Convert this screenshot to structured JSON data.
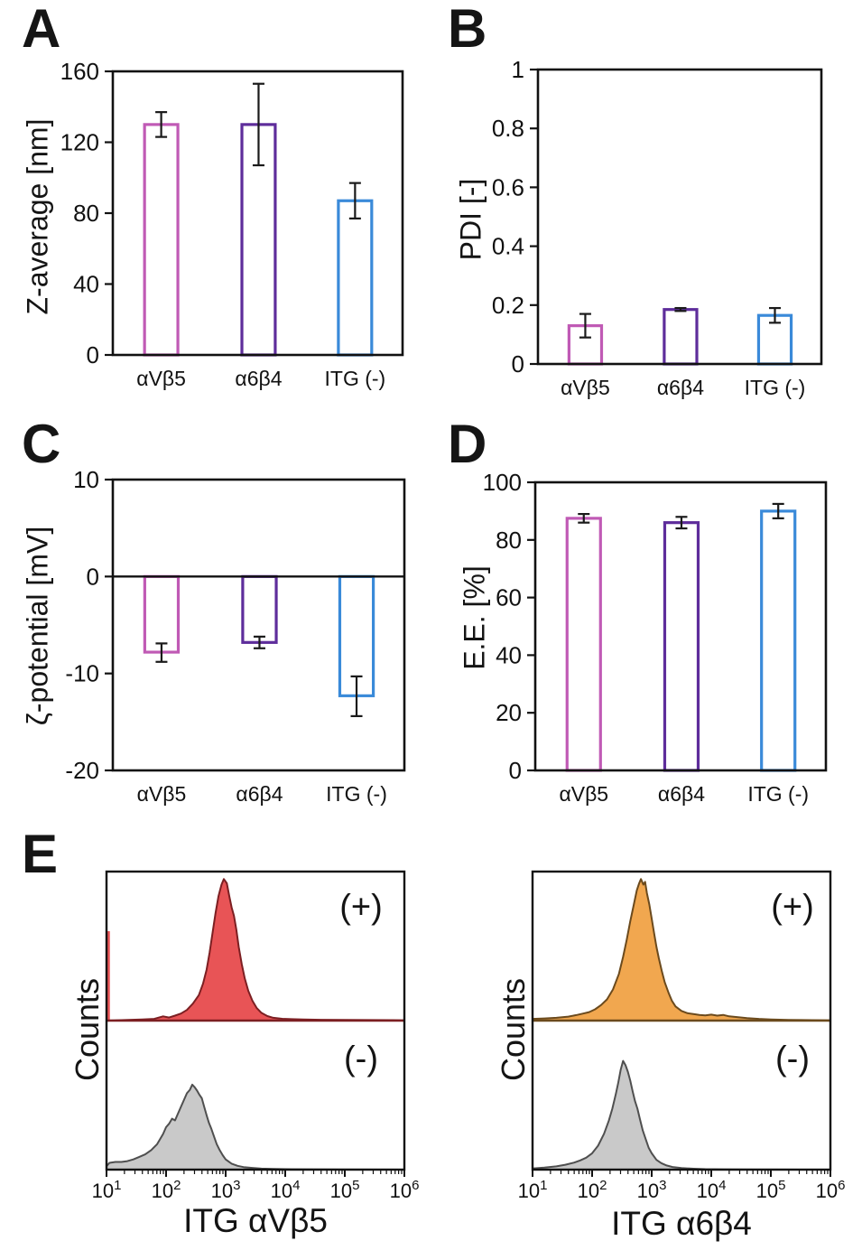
{
  "chart_data": [
    {
      "panel": "A",
      "type": "bar",
      "title": "",
      "ylabel": "Z-average [nm]",
      "xlabel": "",
      "categories": [
        "αVβ5",
        "α6β4",
        "ITG (-)"
      ],
      "values": [
        130,
        130,
        87
      ],
      "error_low": [
        123,
        107,
        77
      ],
      "error_high": [
        137,
        153,
        97
      ],
      "ylim": [
        0,
        160
      ],
      "yticks": [
        160,
        120,
        80,
        40,
        0
      ],
      "bar_colors": [
        "#c05ab5",
        "#5e2d9b",
        "#3a8ad9"
      ],
      "grid": false,
      "legend": "none"
    },
    {
      "panel": "B",
      "type": "bar",
      "title": "",
      "ylabel": "PDI [-]",
      "xlabel": "",
      "categories": [
        "αVβ5",
        "α6β4",
        "ITG (-)"
      ],
      "values": [
        0.13,
        0.185,
        0.165
      ],
      "error_low": [
        0.09,
        0.18,
        0.14
      ],
      "error_high": [
        0.17,
        0.19,
        0.19
      ],
      "ylim": [
        0,
        1
      ],
      "yticks": [
        1,
        0.8,
        0.6,
        0.4,
        0.2,
        0
      ],
      "bar_colors": [
        "#c05ab5",
        "#5e2d9b",
        "#3a8ad9"
      ],
      "grid": false,
      "legend": "none"
    },
    {
      "panel": "C",
      "type": "bar",
      "title": "",
      "ylabel": "ζ-potential [mV]",
      "xlabel": "",
      "categories": [
        "αVβ5",
        "α6β4",
        "ITG (-)"
      ],
      "values": [
        -7.8,
        -6.8,
        -12.3
      ],
      "error_low": [
        -8.8,
        -7.4,
        -14.4
      ],
      "error_high": [
        -6.9,
        -6.2,
        -10.3
      ],
      "ylim": [
        -20,
        10
      ],
      "yticks": [
        10,
        0,
        -10,
        -20
      ],
      "zero_line": true,
      "bar_colors": [
        "#c05ab5",
        "#5e2d9b",
        "#3a8ad9"
      ],
      "grid": false,
      "legend": "none"
    },
    {
      "panel": "D",
      "type": "bar",
      "title": "",
      "ylabel": "E.E. [%]",
      "xlabel": "",
      "categories": [
        "αVβ5",
        "α6β4",
        "ITG (-)"
      ],
      "values": [
        87.5,
        86,
        90
      ],
      "error_low": [
        86,
        84,
        87.5
      ],
      "error_high": [
        89,
        88,
        92.5
      ],
      "ylim": [
        0,
        100
      ],
      "yticks": [
        100,
        80,
        60,
        40,
        20,
        0
      ],
      "bar_colors": [
        "#c05ab5",
        "#5e2d9b",
        "#3a8ad9"
      ],
      "grid": false,
      "legend": "none"
    },
    {
      "panel": "E",
      "type": "flow-cytometry-histogram",
      "plots": [
        {
          "xlabel": "ITG αVβ5",
          "ylabel": "Counts",
          "xscale": "log",
          "x_tick_exponents": [
            1,
            2,
            3,
            4,
            5,
            6
          ],
          "series": [
            {
              "name": "(+)",
              "fill": "#e85456",
              "stroke": "#7c1f22",
              "height_frac": 0.95,
              "left_edge_spike": 0.6,
              "peak_x": 950,
              "points": [
                [
                  1.0,
                  0.0
                ],
                [
                  1.3,
                  0.004
                ],
                [
                  1.6,
                  0.008
                ],
                [
                  1.8,
                  0.012
                ],
                [
                  1.95,
                  0.03
                ],
                [
                  2.05,
                  0.022
                ],
                [
                  2.15,
                  0.035
                ],
                [
                  2.25,
                  0.05
                ],
                [
                  2.35,
                  0.075
                ],
                [
                  2.45,
                  0.12
                ],
                [
                  2.55,
                  0.18
                ],
                [
                  2.62,
                  0.26
                ],
                [
                  2.68,
                  0.36
                ],
                [
                  2.73,
                  0.48
                ],
                [
                  2.78,
                  0.62
                ],
                [
                  2.83,
                  0.76
                ],
                [
                  2.88,
                  0.88
                ],
                [
                  2.93,
                  0.96
                ],
                [
                  2.97,
                  1.0
                ],
                [
                  3.02,
                  0.97
                ],
                [
                  3.06,
                  0.88
                ],
                [
                  3.1,
                  0.8
                ],
                [
                  3.14,
                  0.74
                ],
                [
                  3.18,
                  0.64
                ],
                [
                  3.22,
                  0.52
                ],
                [
                  3.27,
                  0.4
                ],
                [
                  3.32,
                  0.3
                ],
                [
                  3.38,
                  0.21
                ],
                [
                  3.45,
                  0.14
                ],
                [
                  3.52,
                  0.09
                ],
                [
                  3.6,
                  0.055
                ],
                [
                  3.7,
                  0.032
                ],
                [
                  3.8,
                  0.02
                ],
                [
                  3.95,
                  0.013
                ],
                [
                  4.1,
                  0.01
                ],
                [
                  4.3,
                  0.008
                ],
                [
                  4.6,
                  0.006
                ],
                [
                  5.0,
                  0.005
                ],
                [
                  5.4,
                  0.004
                ],
                [
                  5.8,
                  0.003
                ],
                [
                  6.0,
                  0.002
                ]
              ]
            },
            {
              "name": "(-)",
              "fill": "#c9c9c9",
              "stroke": "#4f4f4f",
              "height_frac": 0.57,
              "peak_x": 280,
              "points": [
                [
                  1.0,
                  0.04
                ],
                [
                  1.05,
                  0.08
                ],
                [
                  1.15,
                  0.09
                ],
                [
                  1.25,
                  0.09
                ],
                [
                  1.35,
                  0.1
                ],
                [
                  1.45,
                  0.12
                ],
                [
                  1.55,
                  0.15
                ],
                [
                  1.65,
                  0.18
                ],
                [
                  1.75,
                  0.23
                ],
                [
                  1.85,
                  0.3
                ],
                [
                  1.95,
                  0.42
                ],
                [
                  2.0,
                  0.5
                ],
                [
                  2.05,
                  0.54
                ],
                [
                  2.1,
                  0.6
                ],
                [
                  2.15,
                  0.58
                ],
                [
                  2.2,
                  0.66
                ],
                [
                  2.25,
                  0.74
                ],
                [
                  2.3,
                  0.82
                ],
                [
                  2.35,
                  0.9
                ],
                [
                  2.4,
                  0.94
                ],
                [
                  2.44,
                  1.0
                ],
                [
                  2.48,
                  0.97
                ],
                [
                  2.52,
                  0.93
                ],
                [
                  2.56,
                  0.88
                ],
                [
                  2.6,
                  0.84
                ],
                [
                  2.64,
                  0.74
                ],
                [
                  2.68,
                  0.64
                ],
                [
                  2.72,
                  0.55
                ],
                [
                  2.76,
                  0.48
                ],
                [
                  2.8,
                  0.4
                ],
                [
                  2.85,
                  0.3
                ],
                [
                  2.9,
                  0.23
                ],
                [
                  2.95,
                  0.17
                ],
                [
                  3.0,
                  0.12
                ],
                [
                  3.1,
                  0.07
                ],
                [
                  3.2,
                  0.045
                ],
                [
                  3.3,
                  0.03
                ],
                [
                  3.45,
                  0.02
                ],
                [
                  3.6,
                  0.012
                ],
                [
                  3.8,
                  0.007
                ],
                [
                  4.1,
                  0.004
                ],
                [
                  4.5,
                  0.002
                ],
                [
                  5.0,
                  0.001
                ],
                [
                  6.0,
                  0.0
                ]
              ]
            }
          ]
        },
        {
          "xlabel": "ITG α6β4",
          "ylabel": "Counts",
          "xscale": "log",
          "x_tick_exponents": [
            1,
            2,
            3,
            4,
            5,
            6
          ],
          "series": [
            {
              "name": "(+)",
              "fill": "#f1a74f",
              "stroke": "#6b4a1d",
              "height_frac": 0.95,
              "peak_x": 660,
              "points": [
                [
                  1.0,
                  0.012
                ],
                [
                  1.2,
                  0.015
                ],
                [
                  1.4,
                  0.02
                ],
                [
                  1.6,
                  0.028
                ],
                [
                  1.75,
                  0.04
                ],
                [
                  1.85,
                  0.05
                ],
                [
                  1.95,
                  0.06
                ],
                [
                  2.05,
                  0.08
                ],
                [
                  2.15,
                  0.11
                ],
                [
                  2.25,
                  0.15
                ],
                [
                  2.35,
                  0.22
                ],
                [
                  2.45,
                  0.33
                ],
                [
                  2.52,
                  0.45
                ],
                [
                  2.58,
                  0.57
                ],
                [
                  2.64,
                  0.7
                ],
                [
                  2.7,
                  0.82
                ],
                [
                  2.75,
                  0.92
                ],
                [
                  2.79,
                  0.97
                ],
                [
                  2.82,
                  1.0
                ],
                [
                  2.86,
                  0.96
                ],
                [
                  2.89,
                  0.98
                ],
                [
                  2.92,
                  0.9
                ],
                [
                  2.96,
                  0.82
                ],
                [
                  3.0,
                  0.72
                ],
                [
                  3.04,
                  0.62
                ],
                [
                  3.08,
                  0.52
                ],
                [
                  3.12,
                  0.44
                ],
                [
                  3.17,
                  0.35
                ],
                [
                  3.22,
                  0.27
                ],
                [
                  3.28,
                  0.2
                ],
                [
                  3.34,
                  0.14
                ],
                [
                  3.4,
                  0.1
                ],
                [
                  3.5,
                  0.068
                ],
                [
                  3.6,
                  0.052
                ],
                [
                  3.7,
                  0.046
                ],
                [
                  3.8,
                  0.04
                ],
                [
                  3.9,
                  0.037
                ],
                [
                  4.0,
                  0.042
                ],
                [
                  4.1,
                  0.035
                ],
                [
                  4.2,
                  0.04
                ],
                [
                  4.3,
                  0.03
                ],
                [
                  4.45,
                  0.024
                ],
                [
                  4.6,
                  0.018
                ],
                [
                  4.8,
                  0.012
                ],
                [
                  5.0,
                  0.008
                ],
                [
                  5.3,
                  0.005
                ],
                [
                  5.7,
                  0.003
                ],
                [
                  6.0,
                  0.002
                ]
              ]
            },
            {
              "name": "(-)",
              "fill": "#c9c9c9",
              "stroke": "#4f4f4f",
              "height_frac": 0.73,
              "peak_x": 300,
              "points": [
                [
                  1.0,
                  0.01
                ],
                [
                  1.2,
                  0.018
                ],
                [
                  1.4,
                  0.03
                ],
                [
                  1.55,
                  0.045
                ],
                [
                  1.7,
                  0.065
                ],
                [
                  1.8,
                  0.085
                ],
                [
                  1.9,
                  0.11
                ],
                [
                  2.0,
                  0.15
                ],
                [
                  2.1,
                  0.22
                ],
                [
                  2.2,
                  0.33
                ],
                [
                  2.28,
                  0.45
                ],
                [
                  2.34,
                  0.56
                ],
                [
                  2.4,
                  0.7
                ],
                [
                  2.44,
                  0.8
                ],
                [
                  2.48,
                  0.92
                ],
                [
                  2.52,
                  1.0
                ],
                [
                  2.56,
                  0.96
                ],
                [
                  2.6,
                  0.9
                ],
                [
                  2.64,
                  0.82
                ],
                [
                  2.68,
                  0.72
                ],
                [
                  2.72,
                  0.63
                ],
                [
                  2.76,
                  0.56
                ],
                [
                  2.8,
                  0.47
                ],
                [
                  2.85,
                  0.36
                ],
                [
                  2.9,
                  0.28
                ],
                [
                  2.95,
                  0.2
                ],
                [
                  3.0,
                  0.15
                ],
                [
                  3.08,
                  0.09
                ],
                [
                  3.16,
                  0.06
                ],
                [
                  3.25,
                  0.038
                ],
                [
                  3.35,
                  0.024
                ],
                [
                  3.5,
                  0.014
                ],
                [
                  3.7,
                  0.008
                ],
                [
                  3.9,
                  0.004
                ],
                [
                  4.2,
                  0.002
                ],
                [
                  4.6,
                  0.001
                ],
                [
                  6.0,
                  0.0
                ]
              ]
            }
          ]
        }
      ]
    }
  ]
}
